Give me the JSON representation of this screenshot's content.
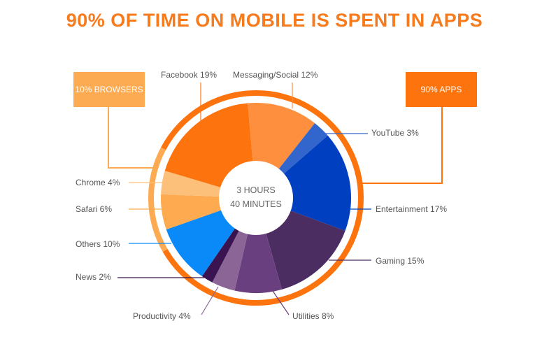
{
  "title": "90% OF TIME ON MOBILE IS SPENT IN APPS",
  "groups": {
    "browsers": {
      "label": "10% BROWSERS",
      "color": "#fdab52"
    },
    "apps": {
      "label": "90% APPS",
      "color": "#fd740f"
    }
  },
  "center": {
    "line1": "3 HOURS",
    "line2": "40 MINUTES"
  },
  "chart_data": {
    "type": "pie",
    "title": "90% OF TIME ON MOBILE IS SPENT IN APPS",
    "total_time": "3 HOURS 40 MINUTES",
    "slices": [
      {
        "name": "Messaging/Social",
        "value": 12,
        "label": "Messaging/Social 12%",
        "color": "#fd8f3f",
        "group": "apps"
      },
      {
        "name": "YouTube",
        "value": 3,
        "label": "YouTube 3%",
        "color": "#3366cc",
        "group": "apps"
      },
      {
        "name": "Entertainment",
        "value": 17,
        "label": "Entertainment 17%",
        "color": "#0040c0",
        "group": "apps"
      },
      {
        "name": "Gaming",
        "value": 15,
        "label": "Gaming 15%",
        "color": "#4b2d62",
        "group": "apps"
      },
      {
        "name": "Utilities",
        "value": 8,
        "label": "Utilities 8%",
        "color": "#6a3f7f",
        "group": "apps"
      },
      {
        "name": "Productivity",
        "value": 4,
        "label": "Productivity 4%",
        "color": "#8a6596",
        "group": "apps"
      },
      {
        "name": "News",
        "value": 2,
        "label": "News 2%",
        "color": "#3a1450",
        "group": "apps"
      },
      {
        "name": "Others",
        "value": 10,
        "label": "Others 10%",
        "color": "#0a8af8",
        "group": "apps"
      },
      {
        "name": "Safari",
        "value": 6,
        "label": "Safari 6%",
        "color": "#fdaa50",
        "group": "browsers"
      },
      {
        "name": "Chrome",
        "value": 4,
        "label": "Chrome 4%",
        "color": "#fdc07a",
        "group": "browsers"
      },
      {
        "name": "Facebook",
        "value": 19,
        "label": "Facebook 19%",
        "color": "#fd740f",
        "group": "apps"
      }
    ]
  }
}
